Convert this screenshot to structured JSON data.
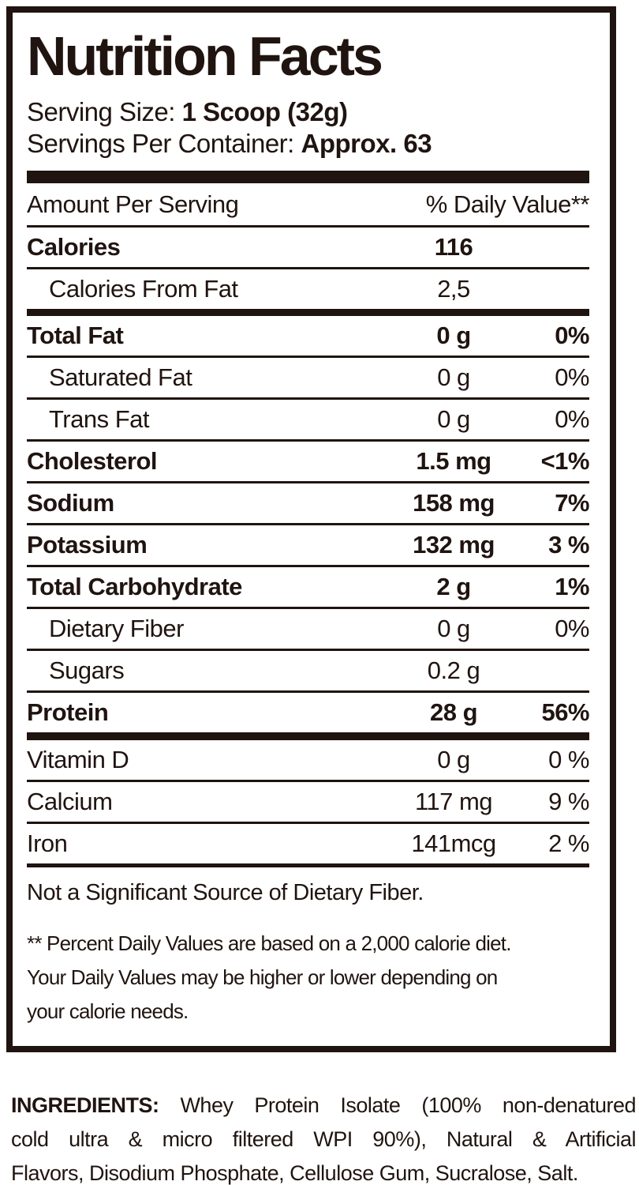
{
  "label": {
    "title": "Nutrition Facts",
    "serving_size_label": "Serving Size: ",
    "serving_size_value": "1 Scoop (32g)",
    "servings_per_container_label": "Servings Per Container: ",
    "servings_per_container_value": "Approx. 63",
    "header": {
      "amount_per_serving": "Amount Per Serving",
      "daily_value": "% Daily Value**"
    },
    "rows": [
      {
        "label": "Calories",
        "amount": "116",
        "dv": ""
      },
      {
        "label": "Calories From Fat",
        "amount": "2,5",
        "dv": ""
      },
      {
        "label": "Total Fat",
        "amount": "0 g",
        "dv": "0%"
      },
      {
        "label": "Saturated Fat",
        "amount": "0 g",
        "dv": "0%"
      },
      {
        "label": "Trans Fat",
        "amount": "0 g",
        "dv": "0%"
      },
      {
        "label": "Cholesterol",
        "amount": "1.5 mg",
        "dv": "<1%"
      },
      {
        "label": "Sodium",
        "amount": "158 mg",
        "dv": "7%"
      },
      {
        "label": "Potassium",
        "amount": "132 mg",
        "dv": "3 %"
      },
      {
        "label": "Total Carbohydrate",
        "amount": "2 g",
        "dv": "1%"
      },
      {
        "label": "Dietary Fiber",
        "amount": "0 g",
        "dv": "0%"
      },
      {
        "label": "Sugars",
        "amount": "0.2 g",
        "dv": ""
      },
      {
        "label": "Protein",
        "amount": "28 g",
        "dv": "56%"
      },
      {
        "label": "Vitamin D",
        "amount": "0 g",
        "dv": "0 %"
      },
      {
        "label": "Calcium",
        "amount": "117 mg",
        "dv": "9 %"
      },
      {
        "label": "Iron",
        "amount": "141mcg",
        "dv": "2 %"
      }
    ],
    "footnotes": {
      "fiber_note": "Not a Significant Source of Dietary Fiber.",
      "dv_note_lines": [
        "** Percent Daily Values are based on a 2,000 calorie diet.",
        "Your Daily Values may be higher or lower depending on",
        "your calorie needs."
      ]
    }
  },
  "ingredients": {
    "label": "INGREDIENTS:",
    "lines": [
      "  Whey Protein Isolate (100% non-denatured",
      "cold ultra & micro filtered WPI 90%), Natural & Artificial",
      "Flavors, Disodium Phosphate, Cellulose Gum, Sucralose, Salt."
    ]
  },
  "colors": {
    "ink": "#201410",
    "background": "#ffffff"
  }
}
